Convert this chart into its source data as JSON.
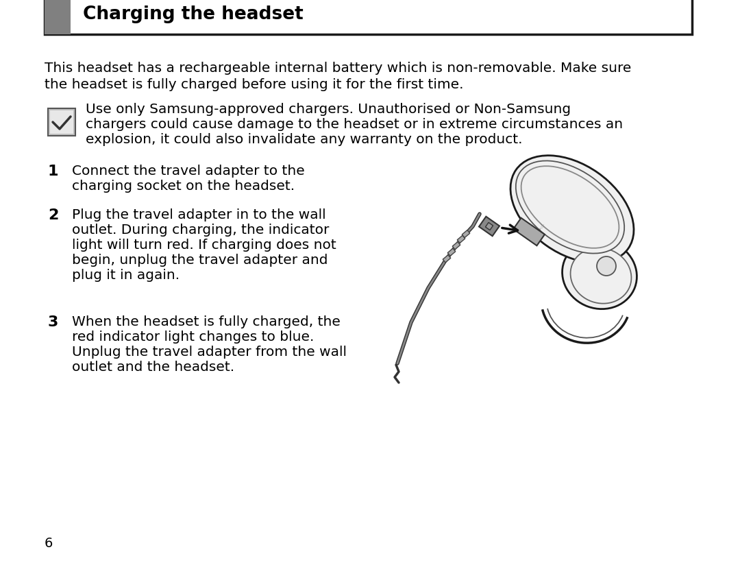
{
  "bg_color": "#ffffff",
  "page_number": "6",
  "header_title": "Charging the headset",
  "header_bar_color": "#808080",
  "header_border_color": "#1a1a1a",
  "header_title_color": "#000000",
  "intro_text_line1": "This headset has a rechargeable internal battery which is non-removable. Make sure",
  "intro_text_line2": "the headset is fully charged before using it for the first time.",
  "note_text_line1": "Use only Samsung-approved chargers. Unauthorised or Non-Samsung",
  "note_text_line2": "chargers could cause damage to the headset or in extreme circumstances an",
  "note_text_line3": "explosion, it could also invalidate any warranty on the product.",
  "step1_num": "1",
  "step1_text_line1": "Connect the travel adapter to the",
  "step1_text_line2": "charging socket on the headset.",
  "step2_num": "2",
  "step2_text_line1": "Plug the travel adapter in to the wall",
  "step2_text_line2": "outlet. During charging, the indicator",
  "step2_text_line3": "light will turn red. If charging does not",
  "step2_text_line4": "begin, unplug the travel adapter and",
  "step2_text_line5": "plug it in again.",
  "step3_num": "3",
  "step3_text_line1": "When the headset is fully charged, the",
  "step3_text_line2": "red indicator light changes to blue.",
  "step3_text_line3": "Unplug the travel adapter from the wall",
  "step3_text_line4": "outlet and the headset.",
  "text_color": "#000000",
  "body_fontsize": 14.5,
  "title_fontsize": 19,
  "step_num_fontsize": 16,
  "page_num_fontsize": 14
}
